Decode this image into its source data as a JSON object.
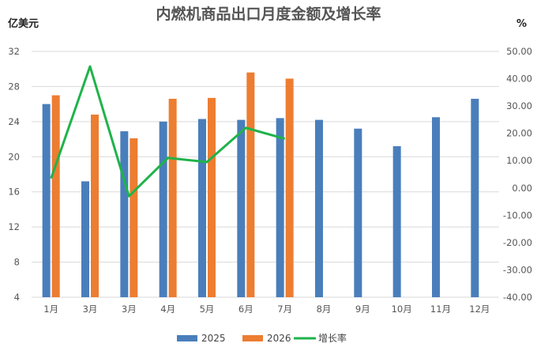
{
  "chart_data": {
    "type": "bar",
    "title": "内燃机商品出口月度金额及增长率",
    "ylabel_left": "亿美元",
    "ylabel_right": "%",
    "categories": [
      "1月",
      "3月",
      "3月",
      "4月",
      "5月",
      "6月",
      "7月",
      "8月",
      "9月",
      "10月",
      "11月",
      "12月"
    ],
    "y_left": {
      "min": 4,
      "max": 32,
      "ticks": [
        "4",
        "8",
        "12",
        "16",
        "20",
        "24",
        "28",
        "32"
      ]
    },
    "y_right": {
      "min": -40,
      "max": 50,
      "ticks": [
        "-40.00",
        "-30.00",
        "-20.00",
        "-10.00",
        "0.00",
        "10.00",
        "20.00",
        "30.00",
        "40.00",
        "50.00"
      ]
    },
    "series": [
      {
        "name": "2025",
        "type": "bar",
        "color": "#4a7ebb",
        "axis": "left",
        "values": [
          26.0,
          17.2,
          22.9,
          24.0,
          24.3,
          24.2,
          24.4,
          24.2,
          23.2,
          21.2,
          24.5,
          26.6
        ]
      },
      {
        "name": "2026",
        "type": "bar",
        "color": "#ed7d31",
        "axis": "left",
        "values": [
          27.0,
          24.8,
          22.1,
          26.6,
          26.7,
          29.6,
          28.9,
          null,
          null,
          null,
          null,
          null
        ]
      },
      {
        "name": "增长率",
        "type": "line",
        "color": "#1fb34a",
        "axis": "right",
        "values": [
          3.5,
          44.5,
          -3.0,
          11.0,
          9.5,
          22.0,
          18.0,
          null,
          null,
          null,
          null,
          null
        ]
      }
    ],
    "grid": true,
    "legend_position": "bottom"
  }
}
